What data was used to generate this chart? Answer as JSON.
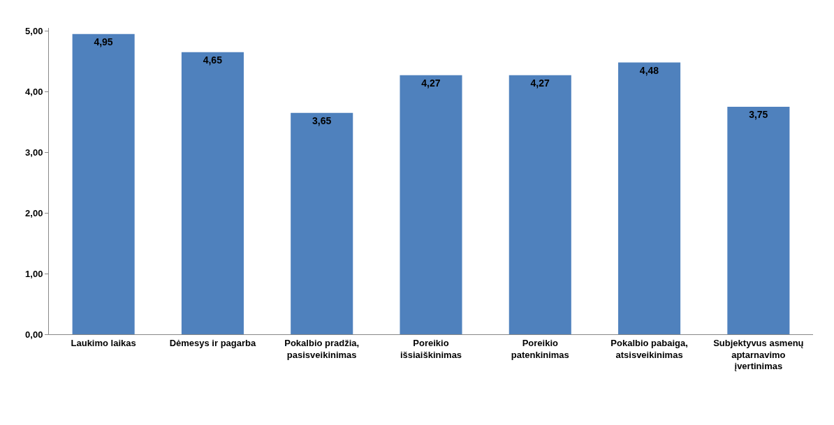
{
  "chart_data": {
    "type": "bar",
    "categories": [
      "Laukimo laikas",
      "Dėmesys ir pagarba",
      "Pokalbio pradžia, pasisveikinimas",
      "Poreikio išsiaiškinimas",
      "Poreikio patenkinimas",
      "Pokalbio pabaiga, atsisveikinimas",
      "Subjektyvus asmenų aptarnavimo įvertinimas"
    ],
    "values": [
      4.95,
      4.65,
      3.65,
      4.27,
      4.27,
      4.48,
      3.75
    ],
    "value_labels": [
      "4,95",
      "4,65",
      "3,65",
      "4,27",
      "4,27",
      "4,48",
      "3,75"
    ],
    "color": "#4f81bd",
    "ylim": [
      0,
      5.05
    ],
    "yticks": [
      {
        "value": 0,
        "label": "0,00"
      },
      {
        "value": 1,
        "label": "1,00"
      },
      {
        "value": 2,
        "label": "2,00"
      },
      {
        "value": 3,
        "label": "3,00"
      },
      {
        "value": 4,
        "label": "4,00"
      },
      {
        "value": 5,
        "label": "5,00"
      }
    ]
  }
}
